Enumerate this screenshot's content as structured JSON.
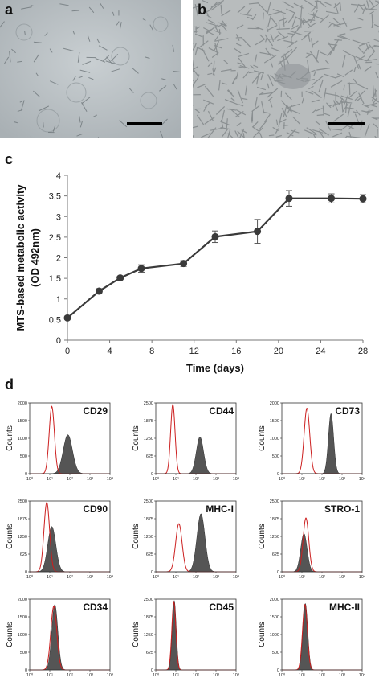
{
  "panels": {
    "a": {
      "letter": "a",
      "description_icon": "microscopy-sparse-cells"
    },
    "b": {
      "letter": "b",
      "description_icon": "microscopy-confluent-cells"
    },
    "c": {
      "letter": "c"
    },
    "d": {
      "letter": "d"
    }
  },
  "chart_data": {
    "type": "line",
    "title": "",
    "xlabel": "Time (days)",
    "ylabel_line1": "MTS-based metabolic activity",
    "ylabel_line2": "(OD 492nm)",
    "x_ticks": [
      "0",
      "4",
      "8",
      "12",
      "16",
      "20",
      "24",
      "28"
    ],
    "y_ticks": [
      "0",
      "0,5",
      "1",
      "1,5",
      "2",
      "2,5",
      "3",
      "3,5",
      "4"
    ],
    "xlim": [
      0,
      28
    ],
    "ylim": [
      0,
      4
    ],
    "grid": false,
    "series": [
      {
        "x": [
          0,
          3,
          5,
          7,
          11,
          14,
          18,
          21,
          25,
          28
        ],
        "y": [
          0.54,
          1.19,
          1.51,
          1.74,
          1.86,
          2.51,
          2.64,
          3.44,
          3.44,
          3.43
        ],
        "err": [
          0.03,
          0.06,
          0.04,
          0.09,
          0.07,
          0.14,
          0.29,
          0.19,
          0.11,
          0.1
        ]
      }
    ],
    "color": "#3a3a3a"
  },
  "histograms": {
    "y_axis_label": "Counts",
    "x_tick_labels": [
      "10⁰",
      "10¹",
      "10²",
      "10³",
      "10⁴"
    ],
    "colors": {
      "isotype": "#cc1f1f",
      "fill": "#555555"
    },
    "plots": [
      {
        "name": "CD29",
        "ymax": 2000,
        "yticks": [
          "0",
          "500",
          "1000",
          "1500",
          "2000"
        ],
        "iso_center": 1.1,
        "iso_height": 1900,
        "iso_width": 0.13,
        "marker_center": 1.9,
        "marker_height": 1100,
        "marker_width": 0.23
      },
      {
        "name": "CD44",
        "ymax": 2500,
        "yticks": [
          "0",
          "625",
          "1250",
          "1875",
          "2500"
        ],
        "iso_center": 0.85,
        "iso_height": 2450,
        "iso_width": 0.11,
        "marker_center": 2.2,
        "marker_height": 1300,
        "marker_width": 0.18
      },
      {
        "name": "CD73",
        "ymax": 2000,
        "yticks": [
          "0",
          "500",
          "1000",
          "1500",
          "2000"
        ],
        "iso_center": 1.25,
        "iso_height": 1850,
        "iso_width": 0.14,
        "marker_center": 2.45,
        "marker_height": 1700,
        "marker_width": 0.13
      },
      {
        "name": "CD90",
        "ymax": 2500,
        "yticks": [
          "0",
          "625",
          "1250",
          "1875",
          "2500"
        ],
        "iso_center": 0.85,
        "iso_height": 2450,
        "iso_width": 0.14,
        "marker_center": 1.1,
        "marker_height": 1600,
        "marker_width": 0.2
      },
      {
        "name": "MHC-I",
        "ymax": 2500,
        "yticks": [
          "0",
          "625",
          "1250",
          "1875",
          "2500"
        ],
        "iso_center": 1.15,
        "iso_height": 1700,
        "iso_width": 0.16,
        "marker_center": 2.25,
        "marker_height": 2050,
        "marker_width": 0.2
      },
      {
        "name": "STRO-1",
        "ymax": 2500,
        "yticks": [
          "0",
          "625",
          "1250",
          "1875",
          "2500"
        ],
        "iso_center": 1.2,
        "iso_height": 1900,
        "iso_width": 0.14,
        "marker_center": 1.1,
        "marker_height": 1350,
        "marker_width": 0.16
      },
      {
        "name": "CD34",
        "ymax": 2000,
        "yticks": [
          "0",
          "500",
          "1000",
          "1500",
          "2000"
        ],
        "iso_center": 1.2,
        "iso_height": 1800,
        "iso_width": 0.15,
        "marker_center": 1.25,
        "marker_height": 1850,
        "marker_width": 0.15
      },
      {
        "name": "CD45",
        "ymax": 2500,
        "yticks": [
          "0",
          "625",
          "1250",
          "1875",
          "2500"
        ],
        "iso_center": 0.9,
        "iso_height": 2400,
        "iso_width": 0.1,
        "marker_center": 0.92,
        "marker_height": 2450,
        "marker_width": 0.1
      },
      {
        "name": "MHC-II",
        "ymax": 2000,
        "yticks": [
          "0",
          "500",
          "1000",
          "1500",
          "2000"
        ],
        "iso_center": 1.15,
        "iso_height": 1850,
        "iso_width": 0.12,
        "marker_center": 1.17,
        "marker_height": 1880,
        "marker_width": 0.12
      }
    ]
  }
}
